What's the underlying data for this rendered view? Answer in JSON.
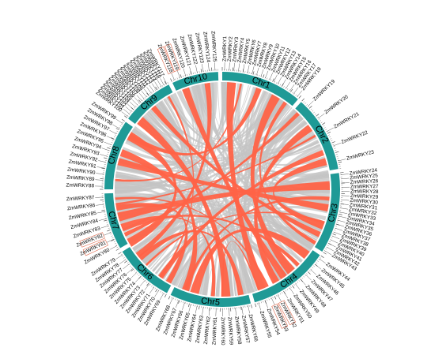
{
  "colors": {
    "chromosome": "#1f9a96",
    "segmental_link": "#ff6347",
    "genome_link": "#c4c4c4",
    "tick": "#555555",
    "highlight_box": "#e06a4e"
  },
  "chromosomes": [
    {
      "name": "Chr1",
      "start": 0,
      "end": 40,
      "genes": [
        "ZmWRKY1",
        "ZmWRKY2",
        "ZmWRKY3",
        "ZmWRKY4",
        "ZmWRKY5",
        "ZmWRKY6",
        "ZmWRKY7",
        "ZmWRKY8",
        "ZmWRKY9",
        "ZmWRKY10",
        "ZmWRKY11",
        "ZmWRKY12",
        "ZmWRKY13",
        "ZmWRKY14",
        "ZmWRKY15",
        "ZmWRKY16",
        "ZmWRKY17",
        "ZmWRKY18"
      ]
    },
    {
      "name": "Chr2",
      "start": 42,
      "end": 80,
      "genes": [
        "ZmWRKY19",
        "ZmWRKY20",
        "ZmWRKY21",
        "ZmWRKY22",
        "ZmWRKY23"
      ]
    },
    {
      "name": "Chr3",
      "start": 82,
      "end": 122,
      "genes": [
        "ZmWRKY24",
        "ZmWRKY25",
        "ZmWRKY26",
        "ZmWRKY27",
        "ZmWRKY28",
        "ZmWRKY29",
        "ZmWRKY30",
        "ZmWRKY31",
        "ZmWRKY32",
        "ZmWRKY33",
        "ZmWRKY34",
        "ZmWRKY35",
        "ZmWRKY36",
        "ZmWRKY37",
        "ZmWRKY38",
        "ZmWRKY39",
        "ZmWRKY40",
        "ZmWRKY41",
        "ZmWRKY42",
        "ZmWRKY43"
      ]
    },
    {
      "name": "Chr4",
      "start": 124,
      "end": 164,
      "genes": [
        "ZmWRKY44",
        "ZmWRKY45",
        "ZmWRKY46",
        "ZmWRKY47",
        "ZmWRKY48",
        "ZmWRKY49",
        "ZmWRKY50",
        "ZmWRKY51",
        "ZmWRKY52",
        "ZmWRKY53",
        "ZmWRKY54",
        "ZmWRKY55"
      ]
    },
    {
      "name": "Chr5",
      "start": 166,
      "end": 206,
      "genes": [
        "ZmWRKY56",
        "ZmWRKY57",
        "ZmWRKY58",
        "ZmWRKY59",
        "ZmWRKY60",
        "ZmWRKY61",
        "ZmWRKY62",
        "ZmWRKY63",
        "ZmWRKY64",
        "ZmWRKY65",
        "ZmWRKY66",
        "ZmWRKY67",
        "ZmWRKY68"
      ]
    },
    {
      "name": "Chr6",
      "start": 208,
      "end": 238,
      "genes": [
        "ZmWRKY69",
        "ZmWRKY70",
        "ZmWRKY71",
        "ZmWRKY72",
        "ZmWRKY73",
        "ZmWRKY74",
        "ZmWRKY75",
        "ZmWRKY76",
        "ZmWRKY77",
        "ZmWRKY78",
        "ZmWRKY79"
      ]
    },
    {
      "name": "Chr7",
      "start": 240,
      "end": 268,
      "genes": [
        "ZmWRKY80",
        "ZmWRKY81",
        "ZmWRKY82",
        "ZmWRKY83",
        "ZmWRKY84",
        "ZmWRKY85",
        "ZmWRKY86",
        "ZmWRKY87"
      ]
    },
    {
      "name": "Chr8",
      "start": 270,
      "end": 305,
      "genes": [
        "ZmWRKY88",
        "ZmWRKY89",
        "ZmWRKY90",
        "ZmWRKY91",
        "ZmWRKY92",
        "ZmWRKY93",
        "ZmWRKY94",
        "ZmWRKY95",
        "ZmWRKY96",
        "ZmWRKY97",
        "ZmWRKY98",
        "ZmWRKY99"
      ]
    },
    {
      "name": "Chr9",
      "start": 307,
      "end": 333,
      "genes": [
        "ZmWRKY100",
        "ZmWRKY101",
        "ZmWRKY102",
        "ZmWRKY103",
        "ZmWRKY104",
        "ZmWRKY105",
        "ZmWRKY106",
        "ZmWRKY107",
        "ZmWRKY108",
        "ZmWRKY109",
        "ZmWRKY110",
        "ZmWRKY111",
        "ZmWRKY112",
        "ZmWRKY113",
        "ZmWRKY114",
        "ZmWRKY115",
        "ZmWRKY116",
        "ZmWRKY117"
      ]
    },
    {
      "name": "Chr10",
      "start": 335,
      "end": 358,
      "genes": [
        "ZmWRKY118",
        "ZmWRKY119",
        "ZmWRKY120",
        "ZmWRKY121",
        "ZmWRKY122",
        "ZmWRKY123",
        "ZmWRKY124",
        "ZmWRKY125"
      ]
    }
  ],
  "highlighted_genes": [
    "ZmWRKY81",
    "ZmWRKY82",
    "ZmWRKY52",
    "ZmWRKY53",
    "ZmWRKY118",
    "ZmWRKY119"
  ],
  "segmental_links": [
    [
      10,
      275
    ],
    [
      20,
      300
    ],
    [
      30,
      140
    ],
    [
      45,
      245
    ],
    [
      55,
      150
    ],
    [
      60,
      262
    ],
    [
      70,
      215
    ],
    [
      88,
      255
    ],
    [
      95,
      200
    ],
    [
      100,
      285
    ],
    [
      108,
      225
    ],
    [
      115,
      320
    ],
    [
      128,
      195
    ],
    [
      135,
      248
    ],
    [
      145,
      340
    ],
    [
      155,
      265
    ],
    [
      170,
      230
    ],
    [
      178,
      310
    ],
    [
      185,
      250
    ],
    [
      200,
      290
    ],
    [
      215,
      330
    ],
    [
      232,
      352
    ],
    [
      5,
      158
    ],
    [
      36,
      120
    ],
    [
      75,
      110
    ],
    [
      160,
      180
    ],
    [
      210,
      260
    ],
    [
      240,
      300
    ]
  ],
  "genome_link_count": 220
}
